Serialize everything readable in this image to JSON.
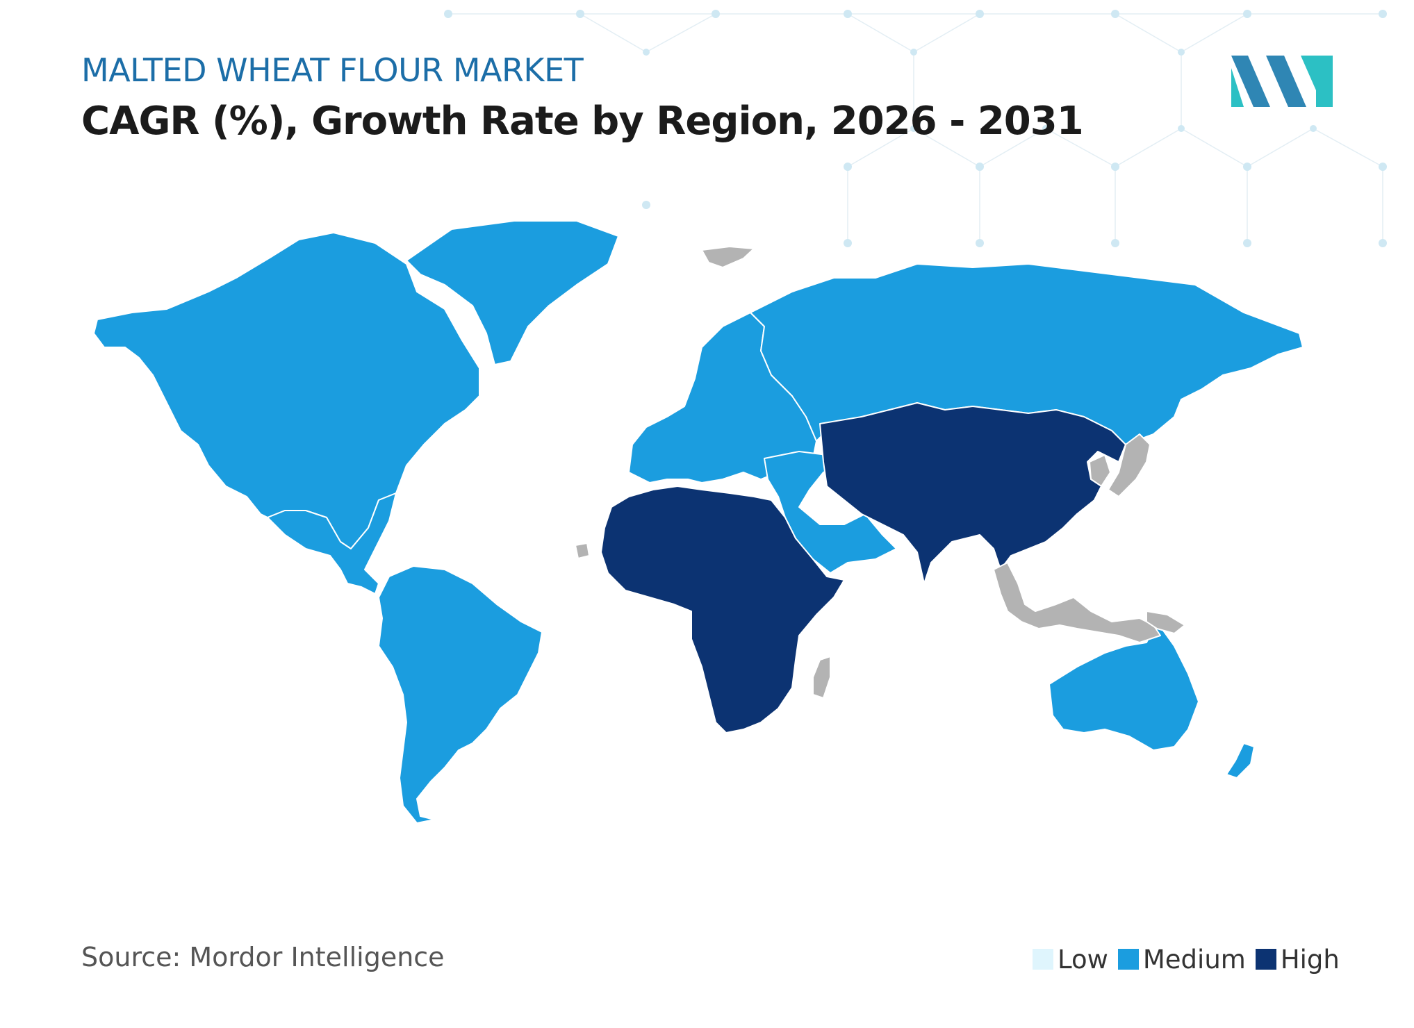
{
  "header": {
    "kicker": "MALTED WHEAT FLOUR MARKET",
    "title": "CAGR (%), Growth Rate by Region, 2026 - 2031"
  },
  "logo": {
    "colors": [
      "#2f86b4",
      "#2cc0c4"
    ]
  },
  "map": {
    "type": "choropleth",
    "categories": [
      "Low",
      "Medium",
      "High"
    ],
    "colors": {
      "Low": "#dff5fd",
      "Medium": "#1b9ddf",
      "High": "#0c3372",
      "No data": "#b3b3b3"
    },
    "regions": [
      {
        "name": "North America",
        "level": "Medium"
      },
      {
        "name": "Central America",
        "level": "Medium"
      },
      {
        "name": "South America",
        "level": "Medium"
      },
      {
        "name": "Greenland",
        "level": "Medium"
      },
      {
        "name": "Europe",
        "level": "Medium"
      },
      {
        "name": "Russia",
        "level": "Medium"
      },
      {
        "name": "Middle East",
        "level": "Medium"
      },
      {
        "name": "Africa",
        "level": "High"
      },
      {
        "name": "Asia-Pacific",
        "level": "High"
      },
      {
        "name": "Australia",
        "level": "Medium"
      },
      {
        "name": "New Zealand",
        "level": "Medium"
      }
    ]
  },
  "footer": {
    "source": "Source: Mordor Intelligence"
  },
  "legend": [
    {
      "label": "Low",
      "color": "#dff5fd"
    },
    {
      "label": "Medium",
      "color": "#1b9ddf"
    },
    {
      "label": "High",
      "color": "#0c3372"
    }
  ]
}
